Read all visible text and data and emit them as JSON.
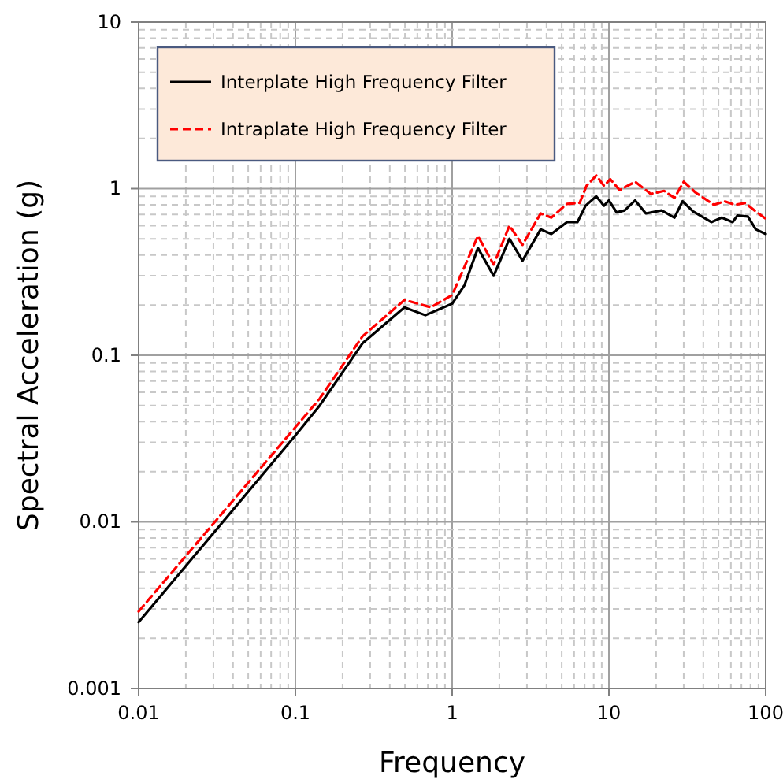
{
  "chart_data": {
    "type": "line",
    "xlabel": "Frequency",
    "ylabel": "Spectral  Acceleration  (g)",
    "log": "xy",
    "grid": true,
    "legend": "top left",
    "marker": "none",
    "xlim": [
      0.01,
      100
    ],
    "xticks": [
      0.01,
      0.1,
      1,
      10,
      100
    ],
    "ylim": [
      0.001,
      10
    ],
    "yticks": [
      0.001,
      0.01,
      0.1,
      1,
      10
    ],
    "series": [
      {
        "name": "Interplate High Frequency Filter",
        "color": "#000000",
        "line_style": "solid",
        "x": [
          0.01,
          0.1,
          0.143,
          0.268,
          0.497,
          0.675,
          1,
          1.2,
          1.46,
          1.84,
          2.32,
          2.81,
          3.67,
          4.29,
          5.4,
          6.3,
          7.1,
          8.3,
          9.3,
          10,
          11.2,
          12.6,
          14.7,
          17.2,
          21.7,
          26.2,
          29.5,
          34.4,
          45,
          52.5,
          61.5,
          66,
          77,
          86.5,
          100
        ],
        "values": [
          0.0025,
          0.033,
          0.05,
          0.118,
          0.194,
          0.174,
          0.204,
          0.264,
          0.44,
          0.3,
          0.5,
          0.37,
          0.57,
          0.535,
          0.63,
          0.63,
          0.79,
          0.9,
          0.79,
          0.85,
          0.72,
          0.74,
          0.85,
          0.71,
          0.74,
          0.67,
          0.84,
          0.73,
          0.63,
          0.67,
          0.63,
          0.69,
          0.68,
          0.57,
          0.535
        ]
      },
      {
        "name": "Intraplate High Frequency Filter",
        "color": "#ff0000",
        "line_style": "dashed",
        "x": [
          0.01,
          0.1,
          0.143,
          0.268,
          0.497,
          0.73,
          1,
          1.46,
          1.84,
          2.32,
          2.81,
          3.67,
          4.29,
          5.4,
          6.5,
          7.2,
          8.3,
          9.3,
          10.2,
          11.7,
          14.7,
          18.5,
          22.5,
          26.2,
          30,
          35.6,
          46.7,
          54.6,
          63.7,
          74,
          86.5,
          100
        ],
        "values": [
          0.0029,
          0.037,
          0.055,
          0.13,
          0.215,
          0.194,
          0.23,
          0.52,
          0.35,
          0.6,
          0.46,
          0.71,
          0.67,
          0.81,
          0.82,
          1.04,
          1.2,
          1.04,
          1.14,
          0.98,
          1.1,
          0.93,
          0.97,
          0.88,
          1.1,
          0.95,
          0.8,
          0.84,
          0.8,
          0.82,
          0.73,
          0.66
        ]
      }
    ]
  }
}
